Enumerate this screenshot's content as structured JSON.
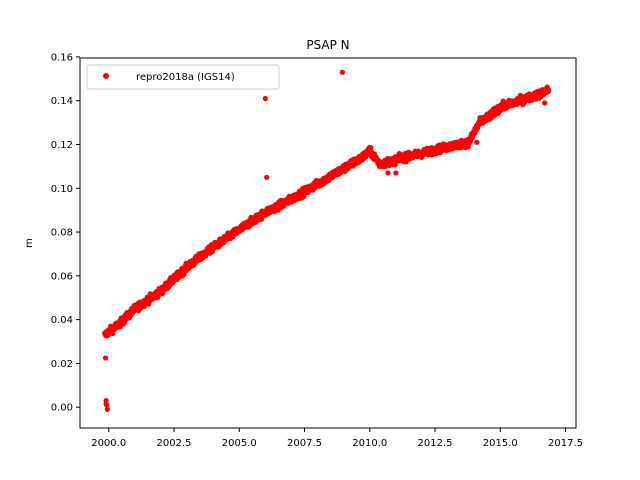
{
  "chart_data": {
    "type": "scatter",
    "title": "PSAP N",
    "xlabel": "",
    "ylabel": "m",
    "xlim": [
      1998.9,
      2017.9
    ],
    "ylim": [
      -0.0095,
      0.1595
    ],
    "x_ticks": [
      2000.0,
      2002.5,
      2005.0,
      2007.5,
      2010.0,
      2012.5,
      2015.0,
      2017.5
    ],
    "x_tick_labels": [
      "2000.0",
      "2002.5",
      "2005.0",
      "2007.5",
      "2010.0",
      "2012.5",
      "2015.0",
      "2017.5"
    ],
    "y_ticks": [
      0.0,
      0.02,
      0.04,
      0.06,
      0.08,
      0.1,
      0.12,
      0.14,
      0.16
    ],
    "y_tick_labels": [
      "0.00",
      "0.02",
      "0.04",
      "0.06",
      "0.08",
      "0.10",
      "0.12",
      "0.14",
      "0.16"
    ],
    "grid": false,
    "legend_position": "upper-left",
    "series": [
      {
        "name": "repro2018a (IGS14)",
        "color": "#ff0000",
        "marker": "circle",
        "trend": {
          "x": [
            1999.85,
            2000.5,
            2001.0,
            2002.0,
            2003.0,
            2004.0,
            2005.0,
            2006.0,
            2007.0,
            2008.0,
            2009.0,
            2009.7,
            2010.0,
            2010.4,
            2011.0,
            2012.0,
            2013.0,
            2013.8,
            2014.2,
            2014.6,
            2015.0,
            2015.5,
            2016.0,
            2016.5,
            2016.85
          ],
          "y": [
            0.033,
            0.039,
            0.045,
            0.053,
            0.064,
            0.073,
            0.081,
            0.089,
            0.095,
            0.102,
            0.109,
            0.114,
            0.117,
            0.111,
            0.113,
            0.116,
            0.119,
            0.121,
            0.13,
            0.133,
            0.137,
            0.139,
            0.141,
            0.143,
            0.145
          ]
        },
        "outliers": {
          "x": [
            1999.88,
            1999.9,
            1999.92,
            1999.95,
            1999.9,
            2006.0,
            2006.05,
            2008.95,
            2010.7,
            2011.0,
            2014.1,
            2016.7
          ],
          "y": [
            0.0225,
            0.003,
            0.001,
            -0.001,
            0.0015,
            0.141,
            0.105,
            0.153,
            0.107,
            0.107,
            0.121,
            0.139
          ]
        }
      }
    ]
  }
}
